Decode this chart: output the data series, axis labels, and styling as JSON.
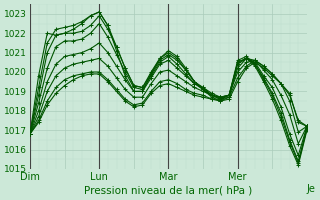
{
  "title": "Pression niveau de la mer( hPa )",
  "bg_color": "#cce8d8",
  "grid_color_major": "#aaccbb",
  "grid_color_minor": "#bbddcc",
  "line_color": "#005500",
  "ylim": [
    1015,
    1023.5
  ],
  "yticks": [
    1015,
    1016,
    1017,
    1018,
    1019,
    1020,
    1021,
    1022,
    1023
  ],
  "day_labels": [
    "Dim",
    "Lun",
    "Mar",
    "Mer",
    "Je"
  ],
  "total_hours": 192,
  "series": [
    {
      "points": [
        [
          0,
          1016.8
        ],
        [
          6,
          1017.4
        ],
        [
          12,
          1018.3
        ],
        [
          18,
          1018.9
        ],
        [
          24,
          1019.3
        ],
        [
          30,
          1019.6
        ],
        [
          36,
          1019.8
        ],
        [
          42,
          1019.9
        ],
        [
          48,
          1019.9
        ],
        [
          54,
          1019.5
        ],
        [
          60,
          1019.0
        ],
        [
          66,
          1018.5
        ],
        [
          72,
          1018.2
        ],
        [
          78,
          1018.3
        ],
        [
          84,
          1018.9
        ],
        [
          90,
          1019.3
        ],
        [
          96,
          1019.4
        ],
        [
          102,
          1019.2
        ],
        [
          108,
          1019.0
        ],
        [
          114,
          1018.8
        ],
        [
          120,
          1018.7
        ],
        [
          126,
          1018.6
        ],
        [
          132,
          1018.5
        ],
        [
          138,
          1018.6
        ],
        [
          144,
          1019.5
        ],
        [
          150,
          1020.2
        ],
        [
          156,
          1020.5
        ],
        [
          162,
          1020.2
        ],
        [
          168,
          1019.8
        ],
        [
          174,
          1019.4
        ],
        [
          180,
          1018.8
        ],
        [
          186,
          1017.5
        ],
        [
          192,
          1017.2
        ]
      ]
    },
    {
      "points": [
        [
          0,
          1016.8
        ],
        [
          6,
          1017.5
        ],
        [
          12,
          1018.5
        ],
        [
          18,
          1019.2
        ],
        [
          24,
          1019.6
        ],
        [
          30,
          1019.8
        ],
        [
          36,
          1019.9
        ],
        [
          42,
          1020.0
        ],
        [
          48,
          1020.0
        ],
        [
          54,
          1019.6
        ],
        [
          60,
          1019.1
        ],
        [
          66,
          1018.6
        ],
        [
          72,
          1018.3
        ],
        [
          78,
          1018.4
        ],
        [
          84,
          1019.0
        ],
        [
          90,
          1019.5
        ],
        [
          96,
          1019.6
        ],
        [
          102,
          1019.4
        ],
        [
          108,
          1019.1
        ],
        [
          114,
          1018.9
        ],
        [
          120,
          1018.8
        ],
        [
          126,
          1018.6
        ],
        [
          132,
          1018.6
        ],
        [
          138,
          1018.7
        ],
        [
          144,
          1019.7
        ],
        [
          150,
          1020.3
        ],
        [
          156,
          1020.6
        ],
        [
          162,
          1020.3
        ],
        [
          168,
          1019.9
        ],
        [
          174,
          1019.4
        ],
        [
          180,
          1018.9
        ],
        [
          186,
          1017.4
        ],
        [
          192,
          1017.2
        ]
      ]
    },
    {
      "points": [
        [
          0,
          1016.8
        ],
        [
          6,
          1017.7
        ],
        [
          12,
          1019.0
        ],
        [
          18,
          1019.8
        ],
        [
          24,
          1020.2
        ],
        [
          30,
          1020.4
        ],
        [
          36,
          1020.5
        ],
        [
          42,
          1020.6
        ],
        [
          48,
          1020.7
        ],
        [
          54,
          1020.3
        ],
        [
          60,
          1019.7
        ],
        [
          66,
          1019.1
        ],
        [
          72,
          1018.7
        ],
        [
          78,
          1018.7
        ],
        [
          84,
          1019.4
        ],
        [
          90,
          1020.0
        ],
        [
          96,
          1020.1
        ],
        [
          102,
          1019.8
        ],
        [
          108,
          1019.5
        ],
        [
          114,
          1019.2
        ],
        [
          120,
          1019.0
        ],
        [
          126,
          1018.8
        ],
        [
          132,
          1018.7
        ],
        [
          138,
          1018.8
        ],
        [
          144,
          1020.0
        ],
        [
          150,
          1020.5
        ],
        [
          156,
          1020.6
        ],
        [
          162,
          1020.3
        ],
        [
          168,
          1019.9
        ],
        [
          174,
          1019.4
        ],
        [
          180,
          1018.5
        ],
        [
          186,
          1016.9
        ],
        [
          192,
          1017.2
        ]
      ]
    },
    {
      "points": [
        [
          0,
          1016.8
        ],
        [
          6,
          1018.0
        ],
        [
          12,
          1019.5
        ],
        [
          18,
          1020.4
        ],
        [
          24,
          1020.8
        ],
        [
          30,
          1020.9
        ],
        [
          36,
          1021.0
        ],
        [
          42,
          1021.2
        ],
        [
          48,
          1021.5
        ],
        [
          54,
          1021.0
        ],
        [
          60,
          1020.3
        ],
        [
          66,
          1019.6
        ],
        [
          72,
          1019.0
        ],
        [
          78,
          1019.0
        ],
        [
          84,
          1019.7
        ],
        [
          90,
          1020.4
        ],
        [
          96,
          1020.6
        ],
        [
          102,
          1020.2
        ],
        [
          108,
          1019.8
        ],
        [
          114,
          1019.4
        ],
        [
          120,
          1019.2
        ],
        [
          126,
          1018.9
        ],
        [
          132,
          1018.7
        ],
        [
          138,
          1018.8
        ],
        [
          144,
          1020.2
        ],
        [
          150,
          1020.7
        ],
        [
          156,
          1020.6
        ],
        [
          162,
          1020.1
        ],
        [
          168,
          1019.6
        ],
        [
          174,
          1018.8
        ],
        [
          180,
          1017.8
        ],
        [
          186,
          1016.3
        ],
        [
          192,
          1017.2
        ]
      ]
    },
    {
      "points": [
        [
          0,
          1016.8
        ],
        [
          6,
          1018.4
        ],
        [
          12,
          1020.2
        ],
        [
          18,
          1021.3
        ],
        [
          24,
          1021.6
        ],
        [
          30,
          1021.6
        ],
        [
          36,
          1021.7
        ],
        [
          42,
          1022.0
        ],
        [
          48,
          1022.5
        ],
        [
          54,
          1021.8
        ],
        [
          60,
          1020.9
        ],
        [
          66,
          1020.0
        ],
        [
          72,
          1019.2
        ],
        [
          78,
          1019.1
        ],
        [
          84,
          1019.8
        ],
        [
          90,
          1020.5
        ],
        [
          96,
          1020.8
        ],
        [
          102,
          1020.4
        ],
        [
          108,
          1019.9
        ],
        [
          114,
          1019.4
        ],
        [
          120,
          1019.1
        ],
        [
          126,
          1018.8
        ],
        [
          132,
          1018.6
        ],
        [
          138,
          1018.8
        ],
        [
          144,
          1020.4
        ],
        [
          150,
          1020.7
        ],
        [
          156,
          1020.5
        ],
        [
          162,
          1019.8
        ],
        [
          168,
          1019.2
        ],
        [
          174,
          1018.2
        ],
        [
          180,
          1016.8
        ],
        [
          186,
          1015.7
        ],
        [
          192,
          1017.2
        ]
      ]
    },
    {
      "points": [
        [
          0,
          1016.8
        ],
        [
          6,
          1018.8
        ],
        [
          12,
          1021.0
        ],
        [
          18,
          1021.9
        ],
        [
          24,
          1022.0
        ],
        [
          30,
          1022.0
        ],
        [
          36,
          1022.1
        ],
        [
          42,
          1022.4
        ],
        [
          48,
          1022.9
        ],
        [
          54,
          1022.2
        ],
        [
          60,
          1021.3
        ],
        [
          66,
          1020.2
        ],
        [
          72,
          1019.3
        ],
        [
          78,
          1019.2
        ],
        [
          84,
          1019.9
        ],
        [
          90,
          1020.6
        ],
        [
          96,
          1020.9
        ],
        [
          102,
          1020.6
        ],
        [
          108,
          1020.1
        ],
        [
          114,
          1019.5
        ],
        [
          120,
          1019.2
        ],
        [
          126,
          1018.8
        ],
        [
          132,
          1018.7
        ],
        [
          138,
          1018.8
        ],
        [
          144,
          1020.5
        ],
        [
          150,
          1020.7
        ],
        [
          156,
          1020.4
        ],
        [
          162,
          1019.7
        ],
        [
          168,
          1018.9
        ],
        [
          174,
          1017.9
        ],
        [
          180,
          1016.5
        ],
        [
          186,
          1015.4
        ],
        [
          192,
          1017.1
        ]
      ]
    },
    {
      "points": [
        [
          0,
          1016.8
        ],
        [
          6,
          1019.2
        ],
        [
          12,
          1021.5
        ],
        [
          18,
          1022.2
        ],
        [
          24,
          1022.3
        ],
        [
          30,
          1022.4
        ],
        [
          36,
          1022.6
        ],
        [
          42,
          1022.9
        ],
        [
          48,
          1023.1
        ],
        [
          54,
          1022.4
        ],
        [
          60,
          1021.3
        ],
        [
          66,
          1020.2
        ],
        [
          72,
          1019.3
        ],
        [
          78,
          1019.2
        ],
        [
          84,
          1020.0
        ],
        [
          90,
          1020.7
        ],
        [
          96,
          1021.0
        ],
        [
          102,
          1020.7
        ],
        [
          108,
          1020.1
        ],
        [
          114,
          1019.5
        ],
        [
          120,
          1019.1
        ],
        [
          126,
          1018.8
        ],
        [
          132,
          1018.6
        ],
        [
          138,
          1018.8
        ],
        [
          144,
          1020.6
        ],
        [
          150,
          1020.8
        ],
        [
          156,
          1020.4
        ],
        [
          162,
          1019.6
        ],
        [
          168,
          1018.8
        ],
        [
          174,
          1017.7
        ],
        [
          180,
          1016.4
        ],
        [
          186,
          1015.3
        ],
        [
          192,
          1017.1
        ]
      ]
    },
    {
      "points": [
        [
          0,
          1016.8
        ],
        [
          6,
          1019.8
        ],
        [
          12,
          1022.0
        ],
        [
          18,
          1021.9
        ],
        [
          24,
          1022.0
        ],
        [
          30,
          1022.2
        ],
        [
          36,
          1022.5
        ],
        [
          42,
          1022.9
        ],
        [
          48,
          1023.1
        ],
        [
          54,
          1022.4
        ],
        [
          60,
          1021.1
        ],
        [
          66,
          1019.8
        ],
        [
          72,
          1019.0
        ],
        [
          78,
          1019.0
        ],
        [
          84,
          1019.9
        ],
        [
          90,
          1020.7
        ],
        [
          96,
          1021.1
        ],
        [
          102,
          1020.8
        ],
        [
          108,
          1020.2
        ],
        [
          114,
          1019.5
        ],
        [
          120,
          1019.1
        ],
        [
          126,
          1018.7
        ],
        [
          132,
          1018.5
        ],
        [
          138,
          1018.7
        ],
        [
          144,
          1020.5
        ],
        [
          150,
          1020.7
        ],
        [
          156,
          1020.3
        ],
        [
          162,
          1019.5
        ],
        [
          168,
          1018.6
        ],
        [
          174,
          1017.5
        ],
        [
          180,
          1016.2
        ],
        [
          186,
          1015.2
        ],
        [
          192,
          1017.0
        ]
      ]
    }
  ],
  "vline_color": "#444444",
  "tick_color": "#006600",
  "label_color": "#006600"
}
